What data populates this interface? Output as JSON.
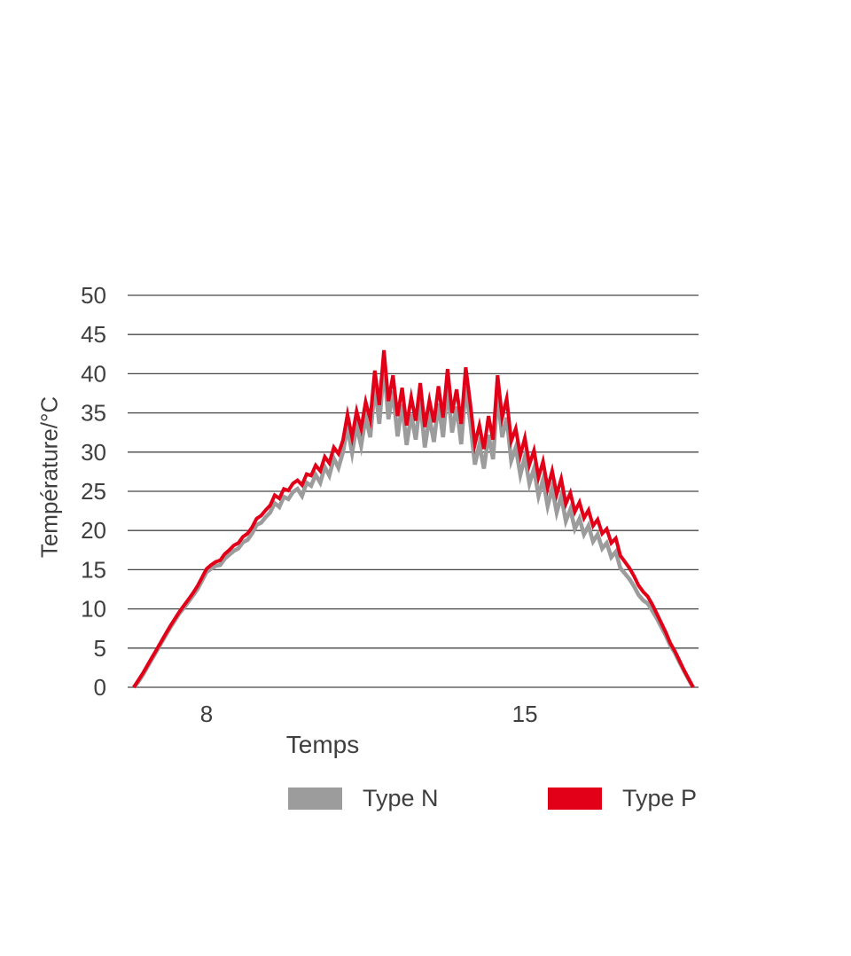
{
  "chart": {
    "y_axis_title": "Température/°C",
    "x_axis_title": "Temps"
  },
  "colors": {
    "background": "#ffffff",
    "grid": "#474747",
    "text": "#3f3f3f",
    "type_n_gray": "#9c9c9c",
    "type_p_red": "#e20019"
  },
  "chart_data": {
    "type": "line",
    "title": "",
    "xlabel": "Temps",
    "ylabel": "Température/°C",
    "xticks": [
      8,
      15
    ],
    "yticks": [
      0,
      5,
      10,
      15,
      20,
      25,
      30,
      35,
      40,
      45,
      50
    ],
    "ylim": [
      0,
      50
    ],
    "xlim": [
      6.3,
      18.8
    ],
    "grid": "horizontal",
    "legend_position": "bottom",
    "x_start": 6.4,
    "x_step": 0.1,
    "series": [
      {
        "name": "Type N",
        "color": "#9c9c9c",
        "values": [
          0,
          0.7,
          1.6,
          2.6,
          3.6,
          4.6,
          5.6,
          6.6,
          7.6,
          8.5,
          9.4,
          10.1,
          10.9,
          11.7,
          12.5,
          13.6,
          14.7,
          15.1,
          15.5,
          15.6,
          16.4,
          16.9,
          17.4,
          17.7,
          18.5,
          18.8,
          19.6,
          20.7,
          21.0,
          21.7,
          22.3,
          23.5,
          23.0,
          24.3,
          24.0,
          24.9,
          25.3,
          24.4,
          26.1,
          25.7,
          27.1,
          26.1,
          28.1,
          27.0,
          29.2,
          28.0,
          30.0,
          33.2,
          29.9,
          33.4,
          30.8,
          34.5,
          31.9,
          38.5,
          33.6,
          41.0,
          34.2,
          37.8,
          32.0,
          36.1,
          30.9,
          34.8,
          31.6,
          36.6,
          30.6,
          34.4,
          31.3,
          36.2,
          31.9,
          38.3,
          32.5,
          35.8,
          31.0,
          38.4,
          33.8,
          28.4,
          31.0,
          27.9,
          32.2,
          29.1,
          37.4,
          31.9,
          34.4,
          28.9,
          30.6,
          27.1,
          29.4,
          26.0,
          27.9,
          24.4,
          26.5,
          23.1,
          25.4,
          22.3,
          24.4,
          21.2,
          22.7,
          20.2,
          21.5,
          19.5,
          20.6,
          18.6,
          19.5,
          17.7,
          18.4,
          16.6,
          17.3,
          15.2,
          14.5,
          13.8,
          12.9,
          11.8,
          11.1,
          10.7,
          9.8,
          8.8,
          7.7,
          6.6,
          5.3,
          4.4,
          3.2,
          2.1,
          1.0,
          0
        ]
      },
      {
        "name": "Type P",
        "color": "#e20019",
        "values": [
          0,
          0.9,
          1.8,
          2.8,
          3.8,
          4.8,
          5.8,
          6.8,
          7.8,
          8.7,
          9.6,
          10.4,
          11.2,
          12.0,
          12.9,
          14.0,
          15.1,
          15.6,
          16.0,
          16.2,
          17.0,
          17.5,
          18.1,
          18.4,
          19.2,
          19.6,
          20.4,
          21.5,
          21.9,
          22.6,
          23.2,
          24.5,
          24.1,
          25.3,
          25.1,
          26.0,
          26.4,
          25.8,
          27.2,
          27.0,
          28.3,
          27.6,
          29.4,
          28.6,
          30.6,
          29.8,
          31.5,
          34.8,
          31.9,
          35.2,
          33.0,
          36.4,
          34.2,
          40.4,
          36.0,
          43.0,
          36.5,
          39.8,
          34.6,
          38.2,
          33.4,
          37.0,
          34.0,
          38.8,
          33.2,
          36.6,
          33.8,
          38.4,
          34.4,
          40.6,
          35.0,
          38.0,
          33.6,
          40.8,
          36.2,
          31.0,
          33.4,
          30.4,
          34.6,
          31.6,
          39.8,
          34.4,
          36.8,
          31.4,
          33.0,
          29.6,
          31.8,
          28.4,
          30.2,
          26.8,
          28.8,
          25.4,
          27.6,
          24.6,
          26.6,
          23.4,
          24.8,
          22.4,
          23.6,
          21.6,
          22.6,
          20.6,
          21.4,
          19.6,
          20.2,
          18.4,
          19.0,
          16.8,
          16.0,
          15.2,
          14.2,
          13.0,
          12.2,
          11.6,
          10.6,
          9.4,
          8.2,
          7.0,
          5.6,
          4.6,
          3.4,
          2.2,
          1.1,
          0
        ]
      }
    ]
  }
}
